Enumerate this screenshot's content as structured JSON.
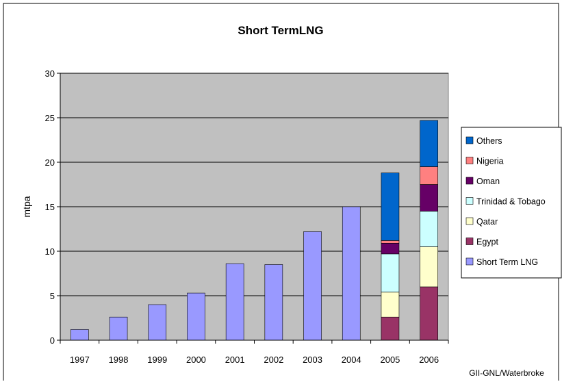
{
  "chart_data": {
    "type": "bar",
    "stacked": true,
    "title": "Short TermLNG",
    "ylabel": "mtpa",
    "xlabel": "",
    "source": "GII-GNL/Waterbroke",
    "ylim": [
      0,
      30
    ],
    "yticks": [
      0,
      5,
      10,
      15,
      20,
      25,
      30
    ],
    "grid": true,
    "legend_position": "right",
    "plot_background": "#c0c0c0",
    "categories": [
      "1997",
      "1998",
      "1999",
      "2000",
      "2001",
      "2002",
      "2003",
      "2004",
      "2005",
      "2006"
    ],
    "series": [
      {
        "name": "Short Term LNG",
        "color": "#9999ff",
        "values": [
          1.2,
          2.6,
          4.0,
          5.3,
          8.6,
          8.5,
          12.2,
          15.0,
          0,
          0
        ]
      },
      {
        "name": "Egypt",
        "color": "#993366",
        "values": [
          0,
          0,
          0,
          0,
          0,
          0,
          0,
          0,
          2.6,
          6.0
        ]
      },
      {
        "name": "Qatar",
        "color": "#ffffcc",
        "values": [
          0,
          0,
          0,
          0,
          0,
          0,
          0,
          0,
          2.8,
          4.5
        ]
      },
      {
        "name": "Trinidad & Tobago",
        "color": "#ccffff",
        "values": [
          0,
          0,
          0,
          0,
          0,
          0,
          0,
          0,
          4.3,
          4.0
        ]
      },
      {
        "name": "Oman",
        "color": "#660066",
        "values": [
          0,
          0,
          0,
          0,
          0,
          0,
          0,
          0,
          1.2,
          3.0
        ]
      },
      {
        "name": "Nigeria",
        "color": "#ff8080",
        "values": [
          0,
          0,
          0,
          0,
          0,
          0,
          0,
          0,
          0.3,
          2.0
        ]
      },
      {
        "name": "Others",
        "color": "#0066cc",
        "values": [
          0,
          0,
          0,
          0,
          0,
          0,
          0,
          0,
          7.6,
          5.2
        ]
      }
    ]
  }
}
